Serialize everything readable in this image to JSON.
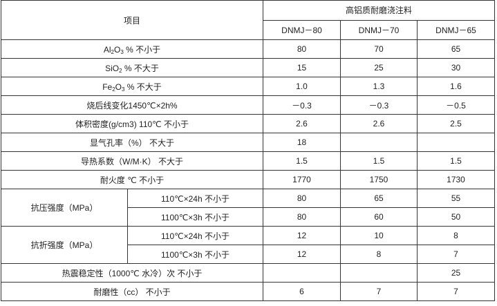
{
  "table": {
    "header": {
      "item": "项目",
      "group": "高铝质耐磨浇注料",
      "grades": [
        "DNMJ－80",
        "DNMJ－70",
        "DNMJ－65"
      ]
    },
    "chem_rows": [
      {
        "formula": [
          [
            "Al",
            "2"
          ],
          [
            "O",
            "3"
          ]
        ],
        "suffix": "%  不小于",
        "values": [
          "80",
          "70",
          "65"
        ]
      },
      {
        "formula": [
          [
            "SiO",
            "2"
          ]
        ],
        "suffix": "%  不大于",
        "values": [
          "15",
          "25",
          "30"
        ]
      },
      {
        "formula": [
          [
            "Fe",
            "2"
          ],
          [
            "O",
            "3"
          ]
        ],
        "suffix": "%  不大于",
        "values": [
          "1.0",
          "1.3",
          "1.6"
        ]
      }
    ],
    "rows_a": [
      {
        "label": "烧后线变化1450℃×2h%",
        "values": [
          "－0.3",
          "－0.3",
          "－0.5"
        ]
      },
      {
        "label": "体积密度(g/cm3) 110℃ 不小于",
        "values": [
          "2.6",
          "2.6",
          "2.5"
        ]
      },
      {
        "label": "显气孔率（%）  不大于",
        "values": [
          "18",
          "",
          ""
        ]
      },
      {
        "label": "导热系数（W/M·K） 不大于",
        "values": [
          "1.5",
          "1.5",
          "1.5"
        ]
      },
      {
        "label": "耐火度  ℃ 不小于",
        "values": [
          "1770",
          "1750",
          "1730"
        ]
      }
    ],
    "groups": [
      {
        "label": "抗压强度（MPa）",
        "rows": [
          {
            "cond": "110℃×24h  不小于",
            "values": [
              "80",
              "65",
              "55"
            ]
          },
          {
            "cond": "1100℃×3h  不小于",
            "values": [
              "80",
              "60",
              "50"
            ]
          }
        ]
      },
      {
        "label": "抗折强度（MPa）",
        "rows": [
          {
            "cond": "110℃×24h  不小于",
            "values": [
              "12",
              "10",
              "8"
            ]
          },
          {
            "cond": "1100℃×3h  不小于",
            "values": [
              "12",
              "8",
              "7"
            ]
          }
        ]
      }
    ],
    "rows_b": [
      {
        "label": "热震稳定性（1000℃ 水冷）次 不小于",
        "values": [
          "",
          "",
          "25"
        ]
      },
      {
        "label": "耐磨性（cc） 不小于",
        "values": [
          "6",
          "7",
          "7"
        ]
      }
    ]
  }
}
